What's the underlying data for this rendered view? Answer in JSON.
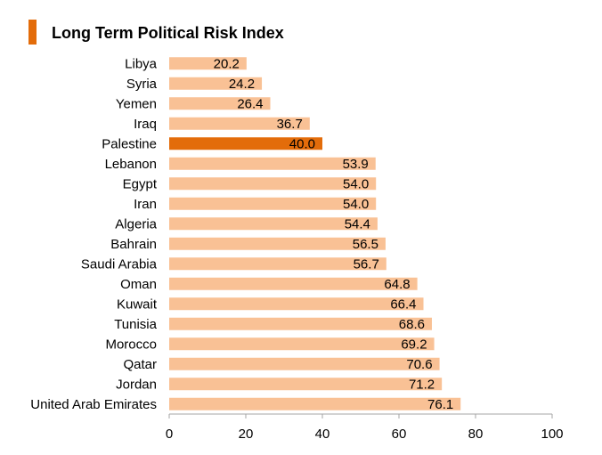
{
  "chart_data": {
    "type": "bar",
    "orientation": "horizontal",
    "title": "Long Term Political Risk Index",
    "categories": [
      "Libya",
      "Syria",
      "Yemen",
      "Iraq",
      "Palestine",
      "Lebanon",
      "Egypt",
      "Iran",
      "Algeria",
      "Bahrain",
      "Saudi Arabia",
      "Oman",
      "Kuwait",
      "Tunisia",
      "Morocco",
      "Qatar",
      "Jordan",
      "United Arab Emirates"
    ],
    "values": [
      20.2,
      24.2,
      26.4,
      36.7,
      40.0,
      53.9,
      54.0,
      54.0,
      54.4,
      56.5,
      56.7,
      64.8,
      66.4,
      68.6,
      69.2,
      70.6,
      71.2,
      76.1
    ],
    "value_labels": [
      "20.2",
      "24.2",
      "26.4",
      "36.7",
      "40.0",
      "53.9",
      "54.0",
      "54.0",
      "54.4",
      "56.5",
      "56.7",
      "64.8",
      "66.4",
      "68.6",
      "69.2",
      "70.6",
      "71.2",
      "76.1"
    ],
    "highlight_category": "Palestine",
    "xlim": [
      0,
      100
    ],
    "xticks": [
      "0",
      "20",
      "40",
      "60",
      "80",
      "100"
    ],
    "xlabel": "",
    "ylabel": "",
    "grid": false,
    "legend": "none"
  },
  "colors": {
    "bar": "#f9c195",
    "highlight_bar": "#e36c0a",
    "title_accent": "#e36c0a",
    "axis": "#a6a6a6"
  }
}
